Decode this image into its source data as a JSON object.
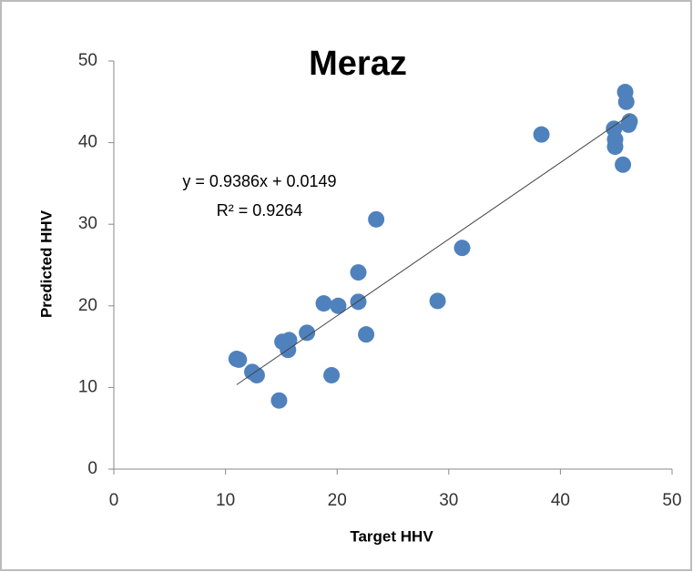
{
  "chart_data": {
    "type": "scatter",
    "title": "Meraz",
    "x_label": "Target HHV",
    "y_label": "Predicted HHV",
    "xlim": [
      0,
      50
    ],
    "xticks": [
      0,
      10,
      20,
      30,
      40,
      50
    ],
    "ylim": [
      0,
      50
    ],
    "yticks": [
      0,
      10,
      20,
      30,
      40,
      50
    ],
    "grid": false,
    "series": [
      {
        "name": "Predicted HHV",
        "color": "#4f81bd",
        "x": [
          11.0,
          11.2,
          12.4,
          12.8,
          14.8,
          15.1,
          15.7,
          15.6,
          17.3,
          18.8,
          20.1,
          19.5,
          21.9,
          21.9,
          22.6,
          23.5,
          29.0,
          31.2,
          38.3,
          44.8,
          44.9,
          44.9,
          45.6,
          45.8,
          45.9,
          46.1,
          46.2
        ],
        "values": [
          13.5,
          13.4,
          11.9,
          11.5,
          8.4,
          15.6,
          15.8,
          14.6,
          16.7,
          20.3,
          20.0,
          11.5,
          24.1,
          20.5,
          16.5,
          30.6,
          20.6,
          27.1,
          41.0,
          41.7,
          40.4,
          39.5,
          37.3,
          46.2,
          45.0,
          42.2,
          42.6
        ]
      }
    ],
    "trendline": {
      "label": "y = 0.9386x + 0.0149",
      "slope": 0.9386,
      "intercept": 0.0149,
      "r2_label": "R² = 0.9264"
    }
  }
}
